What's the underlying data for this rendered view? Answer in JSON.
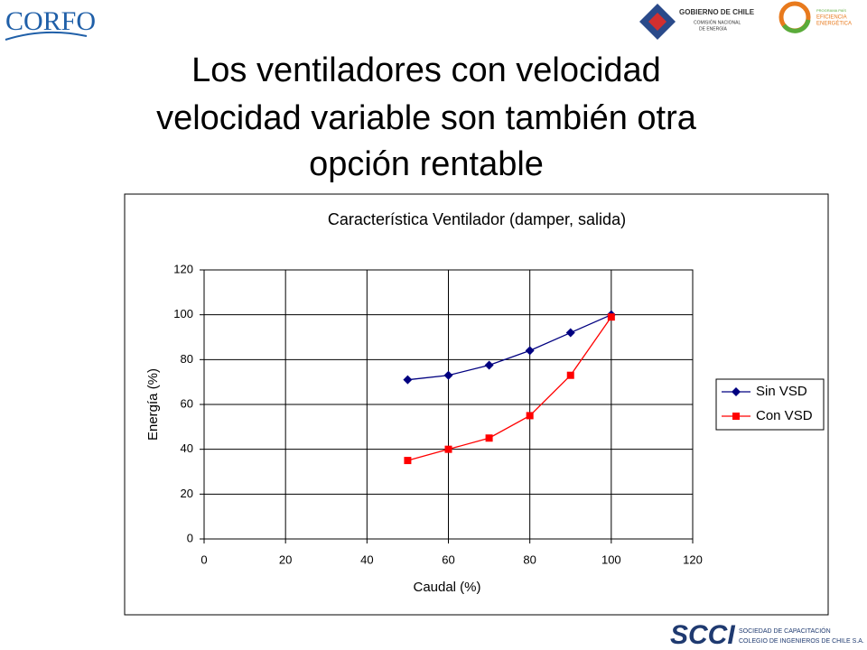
{
  "slide": {
    "logo_left": "CORFO",
    "logo_gov": [
      "GOBIERNO DE CHILE",
      "COMISIÓN NACIONAL",
      "DE ENERGÍA"
    ],
    "logo_program": [
      "PROGRAMA PAÍS",
      "EFICIENCIA",
      "ENERGÉTICA"
    ],
    "title_lines": [
      "Los ventiladores con velocidad",
      "velocidad variable son también otra",
      "opción rentable"
    ],
    "footer_mark": "SCCI",
    "footer_lines": [
      "SOCIEDAD DE CAPACITACIÓN",
      "COLEGIO DE INGENIEROS DE CHILE S.A."
    ]
  },
  "chart_data": {
    "type": "line",
    "title": "Característica Ventilador (damper, salida)",
    "x_label": "Caudal (%)",
    "y_label": "Energía (%)",
    "x": [
      50,
      60,
      70,
      80,
      90,
      100
    ],
    "series": [
      {
        "name": "Sin VSD",
        "color": "#000080",
        "marker": "diamond",
        "values": [
          71,
          73,
          77.5,
          84,
          92,
          100
        ]
      },
      {
        "name": "Con VSD",
        "color": "#ff0000",
        "marker": "square",
        "values": [
          35,
          40,
          45,
          55,
          73,
          99
        ]
      }
    ],
    "xlim": [
      0,
      120
    ],
    "xticks": [
      0,
      20,
      40,
      60,
      80,
      100,
      120
    ],
    "ylim": [
      0,
      120
    ],
    "yticks": [
      0,
      20,
      40,
      60,
      80,
      100,
      120
    ],
    "grid": true,
    "legend": "right"
  }
}
